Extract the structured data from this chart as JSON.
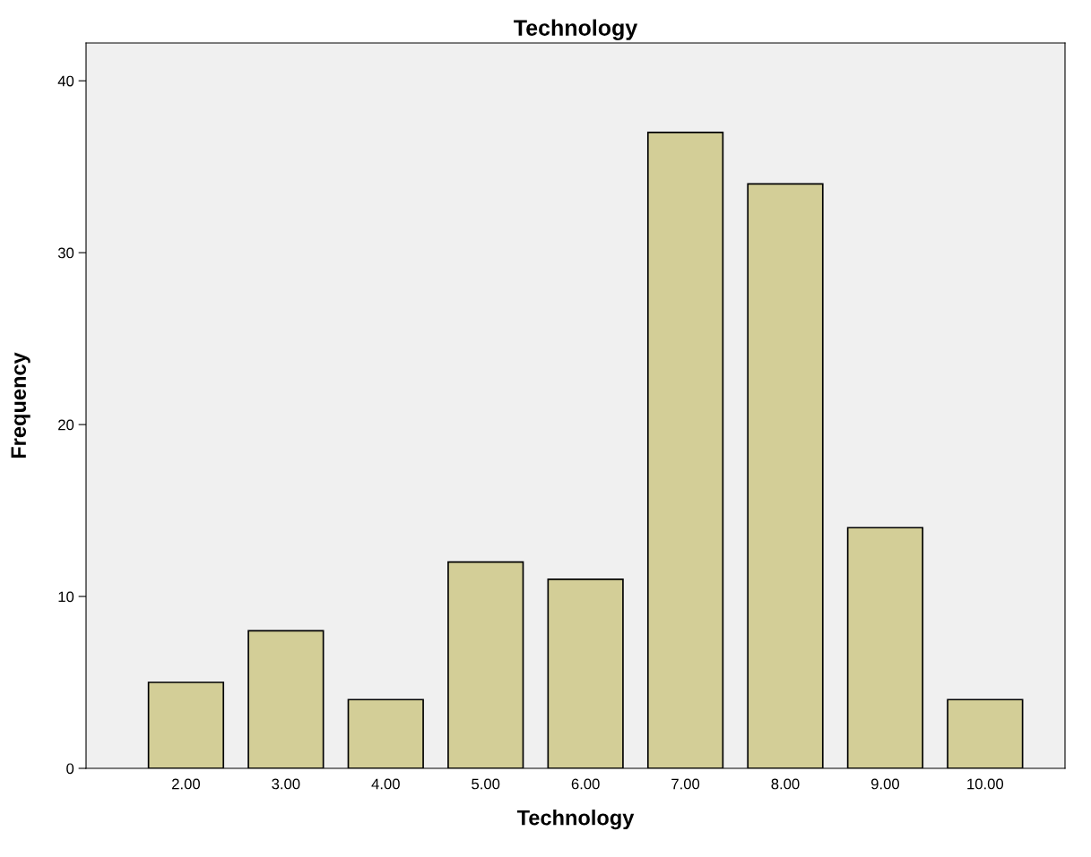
{
  "chart_data": {
    "type": "bar",
    "title": "Technology",
    "xlabel": "Technology",
    "ylabel": "Frequency",
    "categories": [
      "2.00",
      "3.00",
      "4.00",
      "5.00",
      "6.00",
      "7.00",
      "8.00",
      "9.00",
      "10.00"
    ],
    "values": [
      5,
      8,
      4,
      12,
      11,
      37,
      34,
      14,
      4
    ],
    "color": "#d3ce97",
    "ylim": [
      0,
      42.2
    ],
    "yticks": [
      0,
      10,
      20,
      30,
      40
    ],
    "grid": false,
    "legend": false
  }
}
